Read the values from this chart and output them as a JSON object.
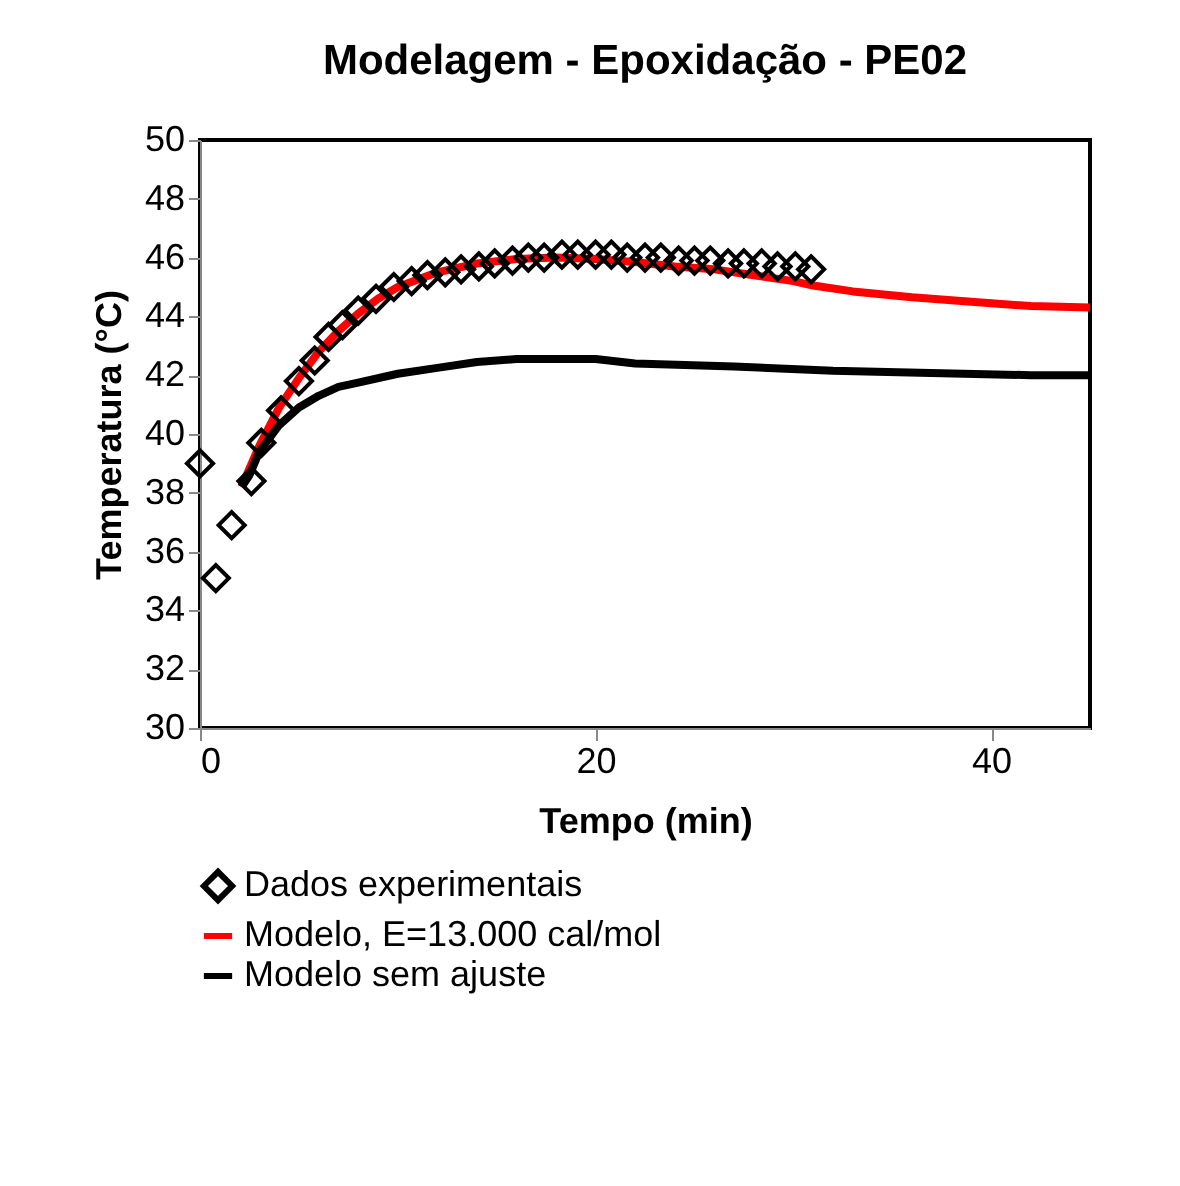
{
  "chart_data": {
    "type": "line",
    "title": "Modelagem - Epoxidação - PE02",
    "xlabel": "Tempo (min)",
    "ylabel": "Temperatura (°C)",
    "xlim": [
      0,
      45
    ],
    "xticks": [
      0,
      20,
      40
    ],
    "ylim": [
      30,
      50
    ],
    "yticks": [
      30,
      32,
      34,
      36,
      38,
      40,
      42,
      44,
      46,
      48,
      50
    ],
    "grid": false,
    "legend": "bottom",
    "series": [
      {
        "name": "Dados experimentais",
        "type": "scatter",
        "marker": "diamond",
        "color": "#000000",
        "x": [
          0,
          0.8,
          1.6,
          2.6,
          3.1,
          4.1,
          5,
          5.8,
          6.5,
          7.2,
          8,
          8.9,
          9.8,
          10.7,
          11.5,
          12.4,
          13.2,
          14.1,
          14.9,
          15.8,
          16.6,
          17.4,
          18.3,
          19.1,
          20.0,
          20.8,
          21.6,
          22.5,
          23.3,
          24.2,
          25.0,
          25.8,
          26.7,
          27.5,
          28.4,
          29.2,
          30.1,
          30.9
        ],
        "values": [
          39.0,
          35.1,
          36.9,
          38.4,
          39.7,
          40.8,
          41.8,
          42.5,
          43.3,
          43.7,
          44.2,
          44.6,
          45.0,
          45.2,
          45.4,
          45.5,
          45.6,
          45.7,
          45.8,
          45.9,
          46.0,
          46.0,
          46.1,
          46.1,
          46.1,
          46.1,
          46.0,
          46.0,
          46.0,
          45.9,
          45.9,
          45.9,
          45.8,
          45.8,
          45.8,
          45.7,
          45.7,
          45.6
        ]
      },
      {
        "name": "Modelo, E=13.000 cal/mol",
        "color": "#ff0000",
        "x": [
          2.1,
          3,
          4,
          5,
          6,
          7,
          8,
          9,
          10,
          12,
          14,
          16,
          18,
          20,
          22,
          24,
          26,
          28,
          30,
          31,
          33,
          36,
          39,
          42,
          45
        ],
        "values": [
          38.2,
          39.6,
          40.9,
          41.9,
          42.8,
          43.5,
          44.1,
          44.6,
          45.0,
          45.5,
          45.8,
          45.95,
          46.0,
          45.95,
          45.85,
          45.7,
          45.6,
          45.4,
          45.2,
          45.05,
          44.85,
          44.65,
          44.5,
          44.35,
          44.3
        ]
      },
      {
        "name": "Modelo sem ajuste",
        "color": "#000000",
        "x": [
          2.1,
          2.5,
          3,
          4,
          5,
          6,
          7,
          8,
          10,
          12,
          14,
          16,
          20,
          22,
          27,
          32,
          42,
          45
        ],
        "values": [
          38.2,
          38.6,
          39.4,
          40.3,
          40.9,
          41.3,
          41.6,
          41.75,
          42.05,
          42.25,
          42.45,
          42.55,
          42.55,
          42.4,
          42.3,
          42.15,
          42.0,
          42.0
        ]
      }
    ]
  }
}
